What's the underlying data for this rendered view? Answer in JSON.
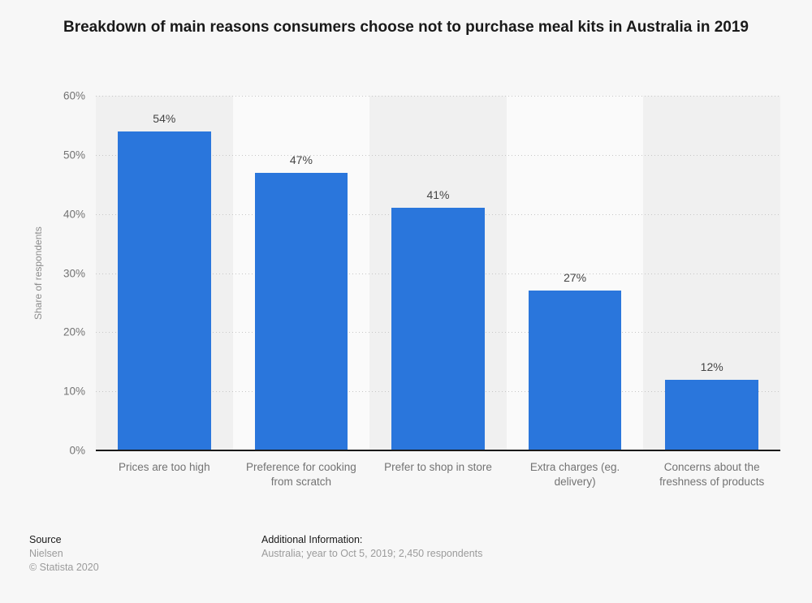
{
  "title": "Breakdown of main reasons consumers choose not to purchase meal kits in Australia in 2019",
  "chart_data": {
    "type": "bar",
    "categories": [
      "Prices are too high",
      "Preference for cooking from scratch",
      "Prefer to shop in store",
      "Extra charges (eg. delivery)",
      "Concerns about the freshness of products"
    ],
    "values": [
      54,
      47,
      41,
      27,
      12
    ],
    "data_labels": [
      "54%",
      "47%",
      "41%",
      "27%",
      "12%"
    ],
    "unit": "%",
    "title": "Breakdown of main reasons consumers choose not to purchase meal kits in Australia in 2019",
    "xlabel": "",
    "ylabel": "Share of respondents",
    "ylim": [
      0,
      60
    ],
    "yticks": [
      "0%",
      "10%",
      "20%",
      "30%",
      "40%",
      "50%",
      "60%"
    ],
    "grid": "horizontal-dotted",
    "legend": "none",
    "bar_color": "#2a76dc",
    "band_colors": [
      "#f0f0f0",
      "#fafafa"
    ],
    "axis_line_color": "#1a1a1a"
  },
  "footer": {
    "source_label": "Source",
    "source_value": "Nielsen",
    "copyright": "© Statista 2020",
    "additional_label": "Additional Information:",
    "additional_value": "Australia; year to Oct 5, 2019; 2,450 respondents"
  }
}
